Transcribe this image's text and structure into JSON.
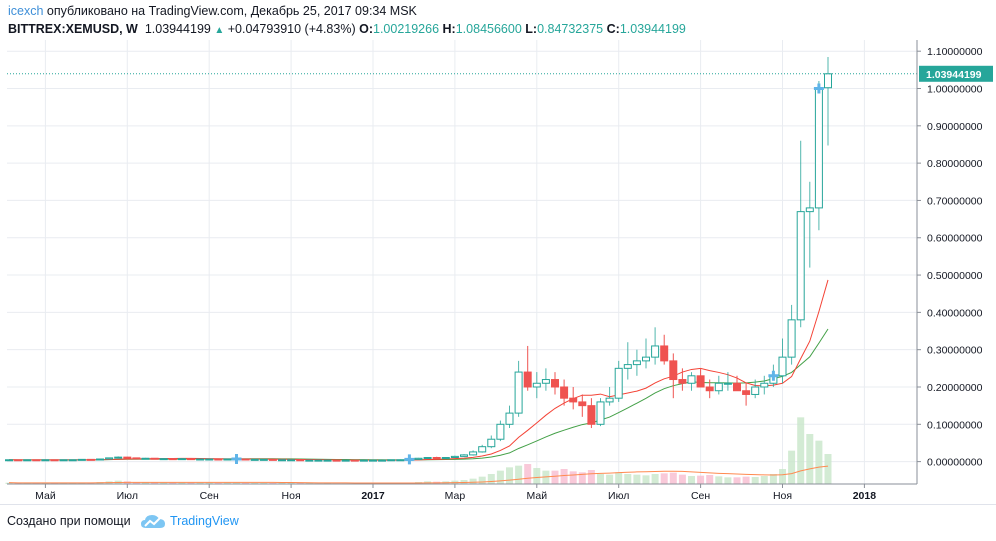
{
  "header": {
    "author": "icexch",
    "published_text": "опубликовано на TradingView.com, Декабрь 25, 2017 09:34 MSK",
    "symbol": "BITTREX:XEMUSD, W",
    "last": "1.03944199",
    "change": "+0.04793910 (+4.83%)",
    "open_label": "O:",
    "open": "1.00219266",
    "high_label": "H:",
    "high": "1.08456600",
    "low_label": "L:",
    "low": "0.84732375",
    "close_label": "C:",
    "close": "1.03944199"
  },
  "footer": {
    "created_with": "Создано при помощи",
    "brand": "TradingView",
    "logo_icon": "tradingview-cloud-icon"
  },
  "colors": {
    "up": "#26a69a",
    "down": "#ef5350",
    "grid": "#e9ecf1",
    "ma_red": "#f44336",
    "ma_green": "#43a047",
    "vol_ma": "#ff8a50",
    "price_line": "#26a69a"
  },
  "chart_data": {
    "type": "candlestick",
    "timeframe": "W",
    "y_ticks": [
      1.1,
      1.0,
      0.9,
      0.8,
      0.7,
      0.6,
      0.5,
      0.4,
      0.3,
      0.2,
      0.1,
      0.0
    ],
    "y_tick_labels": [
      "1.10000000",
      "1.00000000",
      "0.90000000",
      "0.80000000",
      "0.70000000",
      "0.60000000",
      "0.50000000",
      "0.40000000",
      "0.30000000",
      "0.20000000",
      "0.10000000",
      "0.00000000"
    ],
    "ylim": [
      -0.06,
      1.13
    ],
    "last_price_label": "1.03944199",
    "last_price": 1.03944199,
    "x_labels": [
      {
        "label": "Май",
        "idx": 4
      },
      {
        "label": "Июл",
        "idx": 13
      },
      {
        "label": "Сен",
        "idx": 22
      },
      {
        "label": "Ноя",
        "idx": 31
      },
      {
        "label": "2017",
        "idx": 40
      },
      {
        "label": "Мар",
        "idx": 49
      },
      {
        "label": "Май",
        "idx": 58
      },
      {
        "label": "Июл",
        "idx": 67
      },
      {
        "label": "Сен",
        "idx": 76
      },
      {
        "label": "Ноя",
        "idx": 85
      },
      {
        "label": "2018",
        "idx": 94
      }
    ],
    "candles": [
      [
        0.004,
        0.005,
        0.004,
        0.005
      ],
      [
        0.005,
        0.005,
        0.004,
        0.004
      ],
      [
        0.004,
        0.005,
        0.004,
        0.005
      ],
      [
        0.005,
        0.005,
        0.004,
        0.004
      ],
      [
        0.004,
        0.005,
        0.004,
        0.005
      ],
      [
        0.005,
        0.005,
        0.004,
        0.004
      ],
      [
        0.004,
        0.005,
        0.004,
        0.005
      ],
      [
        0.005,
        0.005,
        0.004,
        0.005
      ],
      [
        0.005,
        0.006,
        0.005,
        0.006
      ],
      [
        0.006,
        0.006,
        0.005,
        0.005
      ],
      [
        0.005,
        0.008,
        0.005,
        0.007
      ],
      [
        0.007,
        0.011,
        0.007,
        0.01
      ],
      [
        0.01,
        0.014,
        0.009,
        0.012
      ],
      [
        0.012,
        0.013,
        0.009,
        0.01
      ],
      [
        0.01,
        0.011,
        0.008,
        0.009
      ],
      [
        0.009,
        0.01,
        0.008,
        0.009
      ],
      [
        0.009,
        0.009,
        0.007,
        0.008
      ],
      [
        0.008,
        0.009,
        0.007,
        0.008
      ],
      [
        0.008,
        0.009,
        0.007,
        0.007
      ],
      [
        0.007,
        0.008,
        0.007,
        0.008
      ],
      [
        0.008,
        0.008,
        0.007,
        0.007
      ],
      [
        0.007,
        0.008,
        0.006,
        0.007
      ],
      [
        0.007,
        0.008,
        0.006,
        0.007
      ],
      [
        0.007,
        0.008,
        0.006,
        0.006
      ],
      [
        0.006,
        0.007,
        0.006,
        0.007
      ],
      [
        0.007,
        0.008,
        0.006,
        0.007
      ],
      [
        0.007,
        0.008,
        0.006,
        0.006
      ],
      [
        0.006,
        0.007,
        0.005,
        0.006
      ],
      [
        0.006,
        0.007,
        0.005,
        0.006
      ],
      [
        0.006,
        0.006,
        0.005,
        0.005
      ],
      [
        0.005,
        0.006,
        0.005,
        0.005
      ],
      [
        0.005,
        0.006,
        0.004,
        0.005
      ],
      [
        0.005,
        0.006,
        0.004,
        0.004
      ],
      [
        0.004,
        0.005,
        0.004,
        0.004
      ],
      [
        0.004,
        0.005,
        0.003,
        0.004
      ],
      [
        0.004,
        0.005,
        0.003,
        0.004
      ],
      [
        0.004,
        0.004,
        0.003,
        0.003
      ],
      [
        0.003,
        0.004,
        0.003,
        0.004
      ],
      [
        0.004,
        0.004,
        0.003,
        0.003
      ],
      [
        0.003,
        0.004,
        0.003,
        0.004
      ],
      [
        0.004,
        0.005,
        0.003,
        0.004
      ],
      [
        0.004,
        0.005,
        0.003,
        0.004
      ],
      [
        0.004,
        0.005,
        0.004,
        0.005
      ],
      [
        0.005,
        0.006,
        0.004,
        0.005
      ],
      [
        0.005,
        0.007,
        0.005,
        0.006
      ],
      [
        0.006,
        0.01,
        0.006,
        0.009
      ],
      [
        0.009,
        0.012,
        0.008,
        0.011
      ],
      [
        0.011,
        0.013,
        0.009,
        0.01
      ],
      [
        0.01,
        0.012,
        0.009,
        0.011
      ],
      [
        0.011,
        0.016,
        0.01,
        0.014
      ],
      [
        0.014,
        0.02,
        0.013,
        0.018
      ],
      [
        0.018,
        0.03,
        0.016,
        0.026
      ],
      [
        0.026,
        0.045,
        0.024,
        0.04
      ],
      [
        0.04,
        0.07,
        0.036,
        0.06
      ],
      [
        0.06,
        0.11,
        0.055,
        0.1
      ],
      [
        0.1,
        0.15,
        0.09,
        0.13
      ],
      [
        0.13,
        0.27,
        0.12,
        0.24
      ],
      [
        0.24,
        0.31,
        0.19,
        0.2
      ],
      [
        0.2,
        0.24,
        0.17,
        0.21
      ],
      [
        0.21,
        0.25,
        0.19,
        0.22
      ],
      [
        0.22,
        0.24,
        0.18,
        0.2
      ],
      [
        0.2,
        0.22,
        0.15,
        0.17
      ],
      [
        0.17,
        0.2,
        0.14,
        0.16
      ],
      [
        0.16,
        0.18,
        0.12,
        0.15
      ],
      [
        0.15,
        0.17,
        0.09,
        0.1
      ],
      [
        0.1,
        0.17,
        0.095,
        0.16
      ],
      [
        0.16,
        0.2,
        0.15,
        0.17
      ],
      [
        0.17,
        0.27,
        0.16,
        0.25
      ],
      [
        0.25,
        0.32,
        0.22,
        0.26
      ],
      [
        0.26,
        0.3,
        0.23,
        0.27
      ],
      [
        0.27,
        0.33,
        0.25,
        0.28
      ],
      [
        0.28,
        0.36,
        0.26,
        0.31
      ],
      [
        0.31,
        0.34,
        0.26,
        0.27
      ],
      [
        0.27,
        0.29,
        0.17,
        0.22
      ],
      [
        0.22,
        0.25,
        0.19,
        0.21
      ],
      [
        0.21,
        0.24,
        0.19,
        0.23
      ],
      [
        0.23,
        0.25,
        0.2,
        0.2
      ],
      [
        0.2,
        0.22,
        0.17,
        0.19
      ],
      [
        0.19,
        0.23,
        0.18,
        0.21
      ],
      [
        0.21,
        0.24,
        0.19,
        0.21
      ],
      [
        0.21,
        0.23,
        0.19,
        0.19
      ],
      [
        0.19,
        0.21,
        0.15,
        0.18
      ],
      [
        0.18,
        0.22,
        0.17,
        0.2
      ],
      [
        0.2,
        0.23,
        0.18,
        0.21
      ],
      [
        0.21,
        0.26,
        0.2,
        0.23
      ],
      [
        0.23,
        0.33,
        0.21,
        0.28
      ],
      [
        0.28,
        0.42,
        0.26,
        0.38
      ],
      [
        0.38,
        0.86,
        0.36,
        0.67
      ],
      [
        0.67,
        0.75,
        0.52,
        0.68
      ],
      [
        0.68,
        1.02,
        0.62,
        1.0
      ],
      [
        1.0021,
        1.0846,
        0.8473,
        1.0394
      ]
    ],
    "volumes": [
      0.004,
      0.003,
      0.003,
      0.003,
      0.004,
      0.003,
      0.003,
      0.004,
      0.004,
      0.004,
      0.006,
      0.008,
      0.01,
      0.008,
      0.006,
      0.005,
      0.005,
      0.004,
      0.004,
      0.004,
      0.004,
      0.004,
      0.004,
      0.003,
      0.004,
      0.004,
      0.003,
      0.003,
      0.003,
      0.003,
      0.003,
      0.003,
      0.003,
      0.003,
      0.002,
      0.003,
      0.002,
      0.002,
      0.002,
      0.002,
      0.003,
      0.003,
      0.003,
      0.004,
      0.004,
      0.006,
      0.008,
      0.007,
      0.008,
      0.01,
      0.012,
      0.016,
      0.022,
      0.03,
      0.04,
      0.05,
      0.055,
      0.06,
      0.048,
      0.04,
      0.04,
      0.045,
      0.038,
      0.035,
      0.042,
      0.03,
      0.028,
      0.035,
      0.03,
      0.028,
      0.026,
      0.03,
      0.032,
      0.034,
      0.028,
      0.024,
      0.025,
      0.027,
      0.023,
      0.02,
      0.02,
      0.022,
      0.021,
      0.024,
      0.03,
      0.045,
      0.1,
      0.2,
      0.15,
      0.13,
      0.09
    ],
    "vol_ylim": [
      0,
      0.21
    ],
    "ma_fast_period": 10,
    "ma_slow_period": 20,
    "vol_ma_period": 20,
    "markers_idx": [
      25,
      44,
      84,
      89
    ]
  }
}
